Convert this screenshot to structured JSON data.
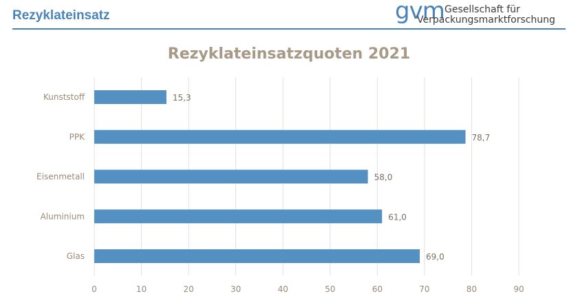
{
  "header": {
    "title": "Rezyklateinsatz"
  },
  "logo": {
    "mark": "gvm",
    "line1": "Gesellschaft für",
    "line2": "Verpackungsmarktforschung"
  },
  "colors": {
    "bar": "#5590c3",
    "accent": "#4a83b7",
    "grid": "#e3e0dc",
    "text": "#9a8a78"
  },
  "chart_data": {
    "type": "bar",
    "orientation": "horizontal",
    "title": "Rezyklateinsatzquoten 2021",
    "categories": [
      "Kunststoff",
      "PPK",
      "Eisenmetall",
      "Aluminium",
      "Glas"
    ],
    "values": [
      15.3,
      78.7,
      58.0,
      61.0,
      69.0
    ],
    "value_labels": [
      "15,3",
      "78,7",
      "58,0",
      "61,0",
      "69,0"
    ],
    "xlim": [
      0,
      90
    ],
    "xticks": [
      0,
      10,
      20,
      30,
      40,
      50,
      60,
      70,
      80,
      90
    ],
    "grid": true,
    "legend": "none"
  }
}
